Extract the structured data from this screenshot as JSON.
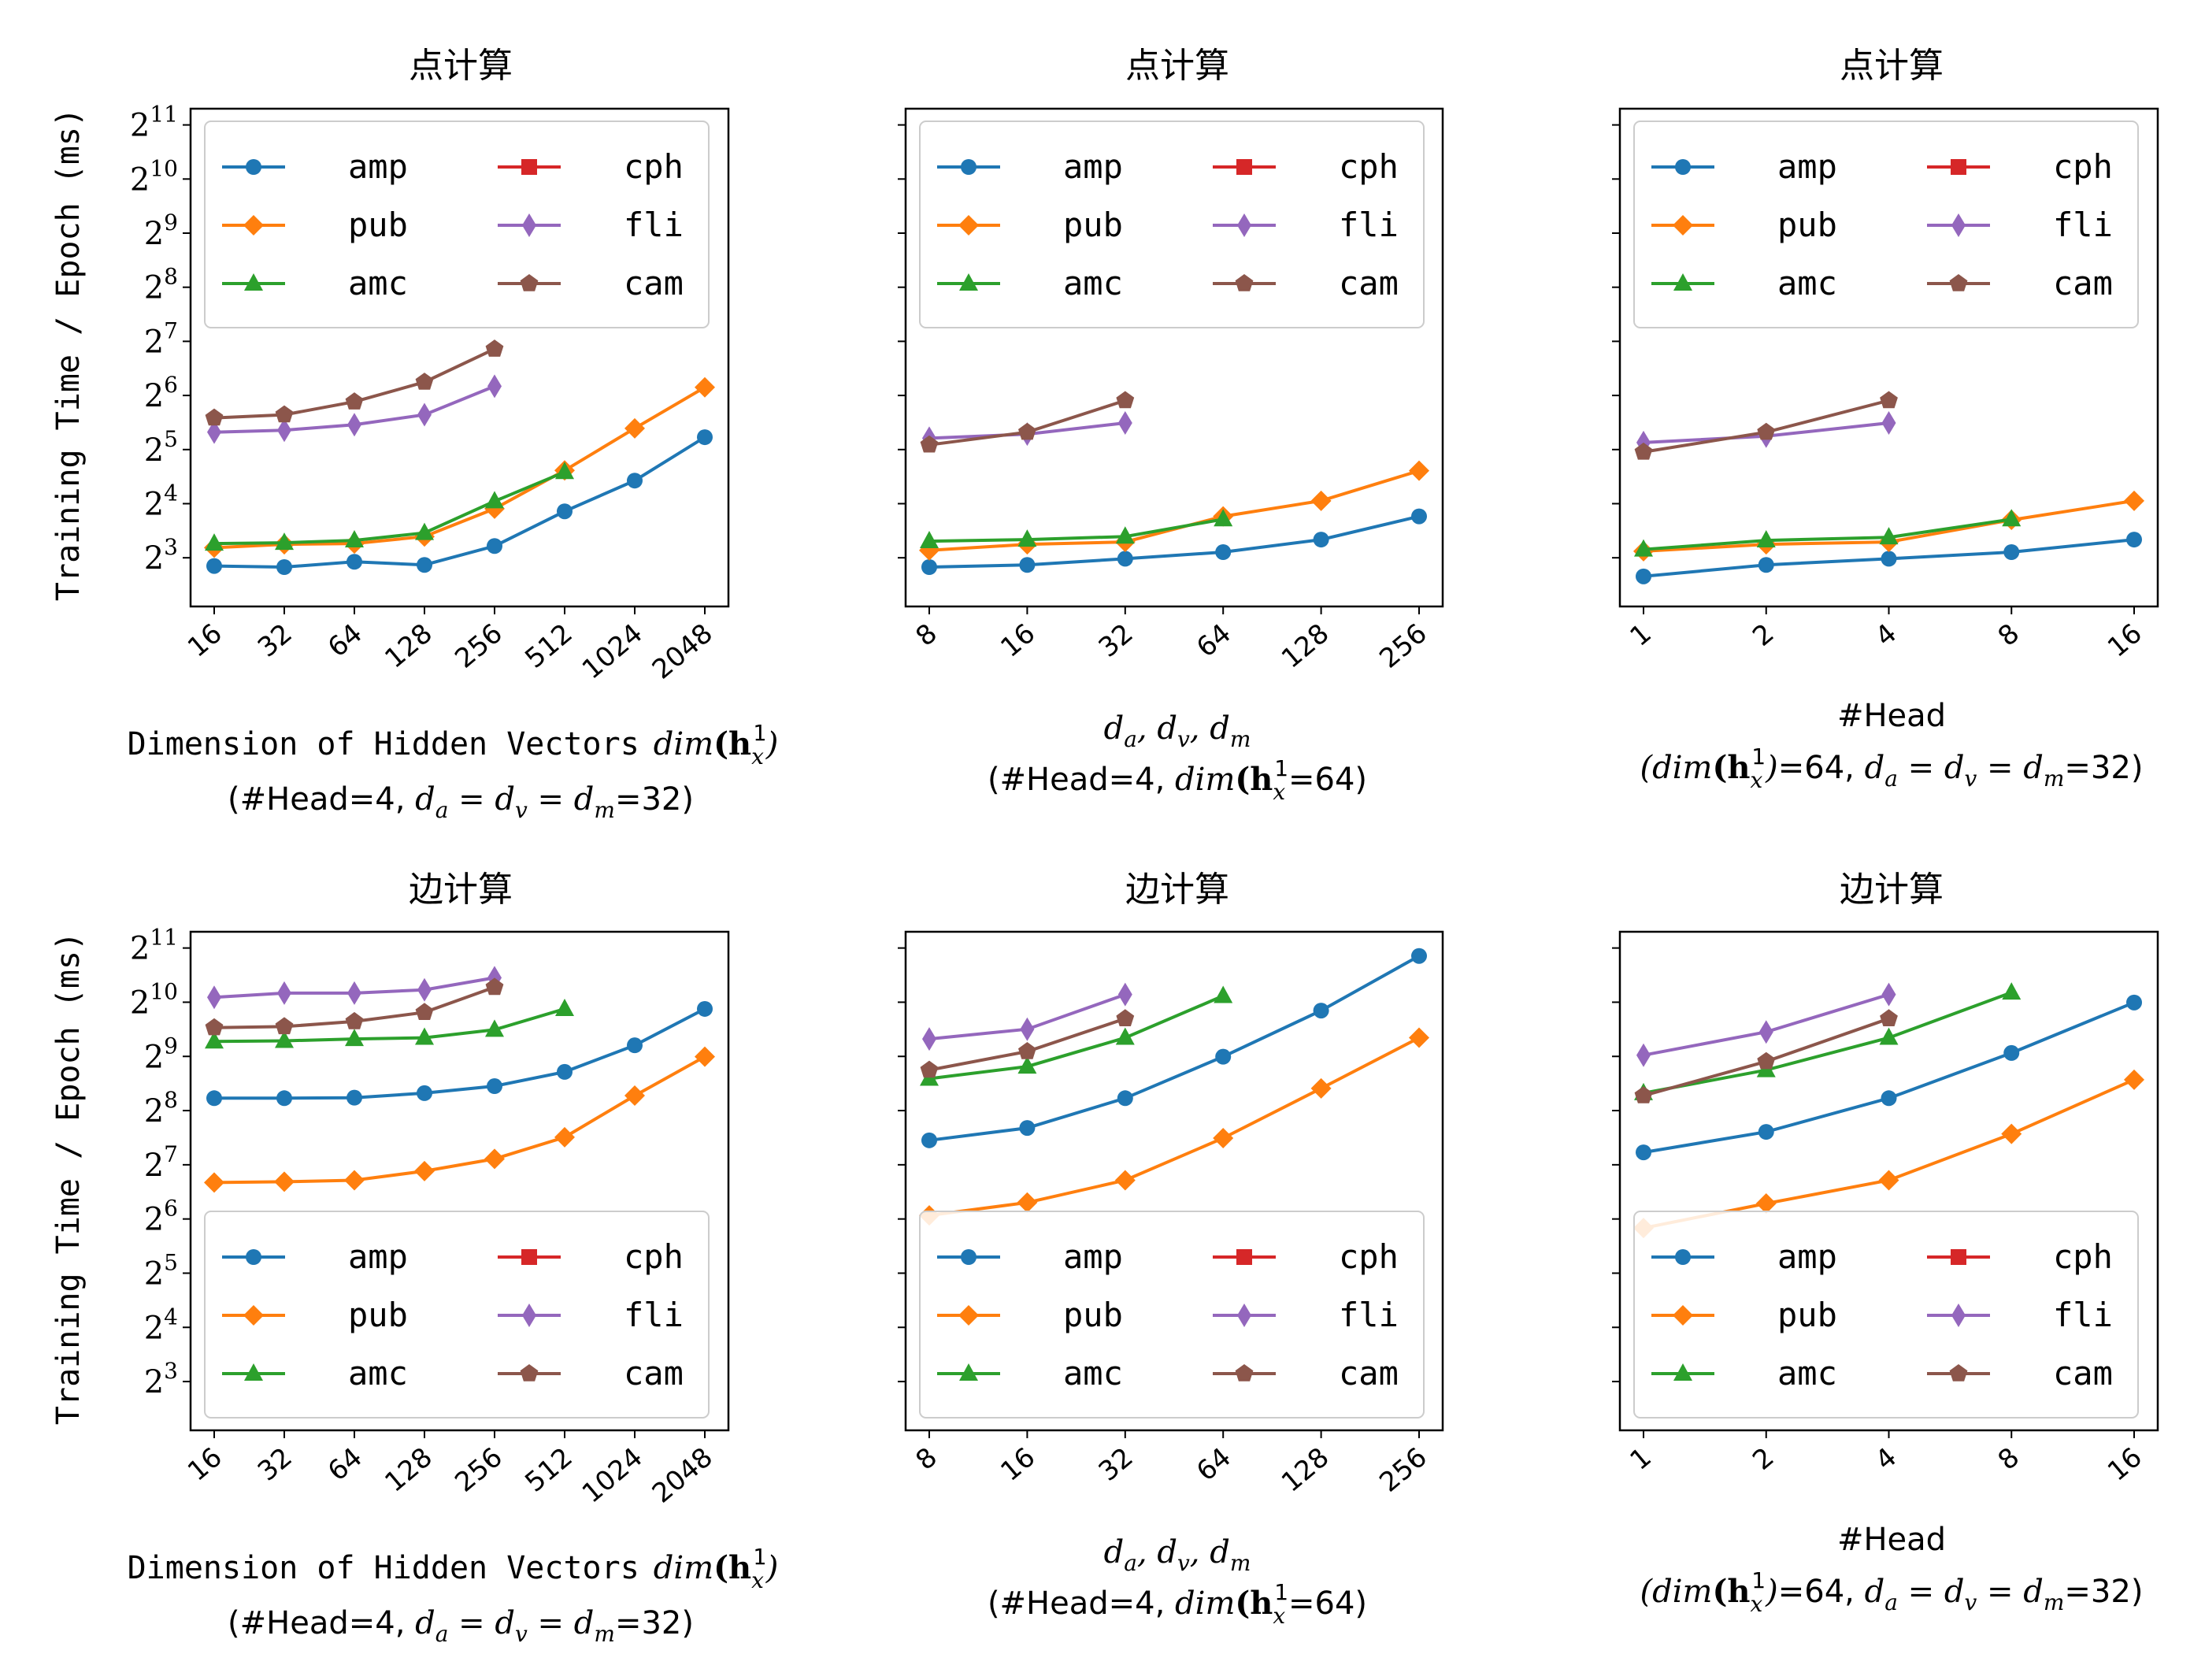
{
  "y_axis": {
    "label": "Training Time / Epoch (ms)",
    "scale": "log2",
    "range_exp": [
      2.1,
      11.3
    ],
    "ticks": [
      {
        "exp": 3,
        "base": "2",
        "sup": "3"
      },
      {
        "exp": 4,
        "base": "2",
        "sup": "4"
      },
      {
        "exp": 5,
        "base": "2",
        "sup": "5"
      },
      {
        "exp": 6,
        "base": "2",
        "sup": "6"
      },
      {
        "exp": 7,
        "base": "2",
        "sup": "7"
      },
      {
        "exp": 8,
        "base": "2",
        "sup": "8"
      },
      {
        "exp": 9,
        "base": "2",
        "sup": "9"
      },
      {
        "exp": 10,
        "base": "2",
        "sup": "10"
      },
      {
        "exp": 11,
        "base": "2",
        "sup": "11"
      }
    ]
  },
  "x_labels": {
    "col0": {
      "line1": "Dimension of Hidden Vectors",
      "line2": "(#Head=4, ",
      "line2_end": "=32)"
    },
    "col1": {
      "line2": "(#Head=4, ",
      "line2_end": "=64)"
    },
    "col2": {
      "line1": "#Head",
      "line2": "=64, ",
      "line2_end": "=32)"
    }
  },
  "legend": [
    {
      "key": "amp",
      "label": "amp",
      "color": "#1f77b4",
      "marker": "circle"
    },
    {
      "key": "pub",
      "label": "pub",
      "color": "#ff7f0e",
      "marker": "diamond"
    },
    {
      "key": "amc",
      "label": "amc",
      "color": "#2ca02c",
      "marker": "triangle"
    },
    {
      "key": "cph",
      "label": "cph",
      "color": "#d62728",
      "marker": "square"
    },
    {
      "key": "fli",
      "label": "fli",
      "color": "#9467bd",
      "marker": "thin-diamond"
    },
    {
      "key": "cam",
      "label": "cam",
      "color": "#8c564b",
      "marker": "pentagon"
    }
  ],
  "chart_data": [
    {
      "type": "line",
      "title": "点计算",
      "row": 0,
      "col": 0,
      "x_ticks": [
        "16",
        "32",
        "64",
        "128",
        "256",
        "512",
        "1024",
        "2048"
      ],
      "legend_position": "top",
      "series": [
        {
          "name": "amp",
          "values": [
            7.2,
            7.1,
            7.6,
            7.3,
            9.3,
            14.5,
            21.5,
            37.5
          ]
        },
        {
          "name": "pub",
          "values": [
            9.1,
            9.5,
            9.6,
            10.5,
            15.0,
            24.5,
            42.0,
            71.0
          ]
        },
        {
          "name": "amc",
          "values": [
            9.6,
            9.7,
            10.0,
            11.0,
            16.5,
            24.0,
            null,
            null
          ]
        },
        {
          "name": "fli",
          "values": [
            40.0,
            41.0,
            44.0,
            50.0,
            72.0,
            null,
            null,
            null
          ]
        },
        {
          "name": "cam",
          "values": [
            48.0,
            50.0,
            59.0,
            76.0,
            116.0,
            null,
            null,
            null
          ]
        }
      ]
    },
    {
      "type": "line",
      "title": "点计算",
      "row": 0,
      "col": 1,
      "x_ticks": [
        "8",
        "16",
        "32",
        "64",
        "128",
        "256"
      ],
      "legend_position": "top",
      "series": [
        {
          "name": "amp",
          "values": [
            7.1,
            7.3,
            7.9,
            8.6,
            10.1,
            13.6
          ]
        },
        {
          "name": "pub",
          "values": [
            8.8,
            9.5,
            9.8,
            13.6,
            16.6,
            24.4
          ]
        },
        {
          "name": "amc",
          "values": [
            9.9,
            10.1,
            10.5,
            13.1,
            null,
            null
          ]
        },
        {
          "name": "fli",
          "values": [
            37.0,
            39.0,
            45.0,
            null,
            null,
            null
          ]
        },
        {
          "name": "cam",
          "values": [
            34.0,
            40.0,
            60.0,
            null,
            null,
            null
          ]
        }
      ]
    },
    {
      "type": "line",
      "title": "点计算",
      "row": 0,
      "col": 2,
      "x_ticks": [
        "1",
        "2",
        "4",
        "8",
        "16"
      ],
      "legend_position": "top",
      "series": [
        {
          "name": "amp",
          "values": [
            6.3,
            7.3,
            7.9,
            8.6,
            10.1
          ]
        },
        {
          "name": "pub",
          "values": [
            8.7,
            9.5,
            9.8,
            13.0,
            16.6
          ]
        },
        {
          "name": "amc",
          "values": [
            8.9,
            10.0,
            10.4,
            13.1,
            null
          ]
        },
        {
          "name": "fli",
          "values": [
            35.0,
            38.0,
            45.0,
            null,
            null
          ]
        },
        {
          "name": "cam",
          "values": [
            31.0,
            40.0,
            60.0,
            null,
            null
          ]
        }
      ]
    },
    {
      "type": "line",
      "title": "边计算",
      "row": 1,
      "col": 0,
      "x_ticks": [
        "16",
        "32",
        "64",
        "128",
        "256",
        "512",
        "1024",
        "2048"
      ],
      "legend_position": "bottom",
      "series": [
        {
          "name": "amp",
          "values": [
            300,
            300,
            302,
            320,
            350,
            420,
            590,
            940
          ]
        },
        {
          "name": "pub",
          "values": [
            102,
            103,
            105,
            118,
            138,
            182,
            310,
            510
          ]
        },
        {
          "name": "amc",
          "values": [
            620,
            625,
            640,
            650,
            720,
            940,
            null,
            null
          ]
        },
        {
          "name": "fli",
          "values": [
            1090,
            1150,
            1150,
            1200,
            1400,
            null,
            null,
            null
          ]
        },
        {
          "name": "cam",
          "values": [
            740,
            750,
            800,
            900,
            1240,
            null,
            null,
            null
          ]
        }
      ]
    },
    {
      "type": "line",
      "title": "边计算",
      "row": 1,
      "col": 1,
      "x_ticks": [
        "8",
        "16",
        "32",
        "64",
        "128",
        "256"
      ],
      "legend_position": "bottom",
      "series": [
        {
          "name": "amp",
          "values": [
            175,
            205,
            300,
            510,
            920,
            1850
          ]
        },
        {
          "name": "pub",
          "values": [
            67,
            79,
            105,
            180,
            340,
            650
          ]
        },
        {
          "name": "amc",
          "values": [
            385,
            450,
            650,
            1110,
            null,
            null
          ]
        },
        {
          "name": "fli",
          "values": [
            640,
            725,
            1130,
            null,
            null,
            null
          ]
        },
        {
          "name": "cam",
          "values": [
            430,
            545,
            830,
            null,
            null,
            null
          ]
        }
      ]
    },
    {
      "type": "line",
      "title": "边计算",
      "row": 1,
      "col": 2,
      "x_ticks": [
        "1",
        "2",
        "4",
        "8",
        "16"
      ],
      "legend_position": "bottom",
      "series": [
        {
          "name": "amp",
          "values": [
            150,
            195,
            300,
            535,
            1020
          ]
        },
        {
          "name": "pub",
          "values": [
            57,
            78,
            105,
            190,
            380
          ]
        },
        {
          "name": "amc",
          "values": [
            320,
            430,
            650,
            1160,
            null
          ]
        },
        {
          "name": "fli",
          "values": [
            520,
            700,
            1130,
            null,
            null
          ]
        },
        {
          "name": "cam",
          "values": [
            310,
            480,
            830,
            null,
            null
          ]
        }
      ]
    }
  ]
}
